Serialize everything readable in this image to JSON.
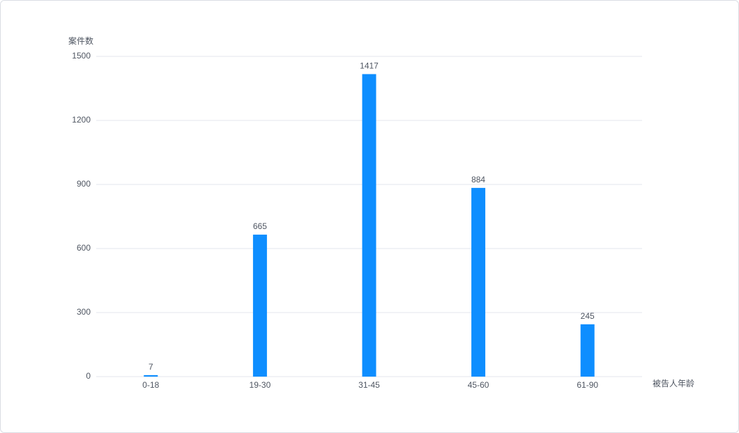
{
  "chart_data": {
    "type": "bar",
    "y_label": "案件数",
    "x_label": "被告人年龄",
    "categories": [
      "0-18",
      "19-30",
      "31-45",
      "45-60",
      "61-90"
    ],
    "values": [
      7,
      665,
      1417,
      884,
      245
    ],
    "color": "#0e8eff",
    "ylim": [
      0,
      1500
    ],
    "yticks": [
      0,
      300,
      600,
      900,
      1200,
      1500
    ],
    "grid": true
  }
}
